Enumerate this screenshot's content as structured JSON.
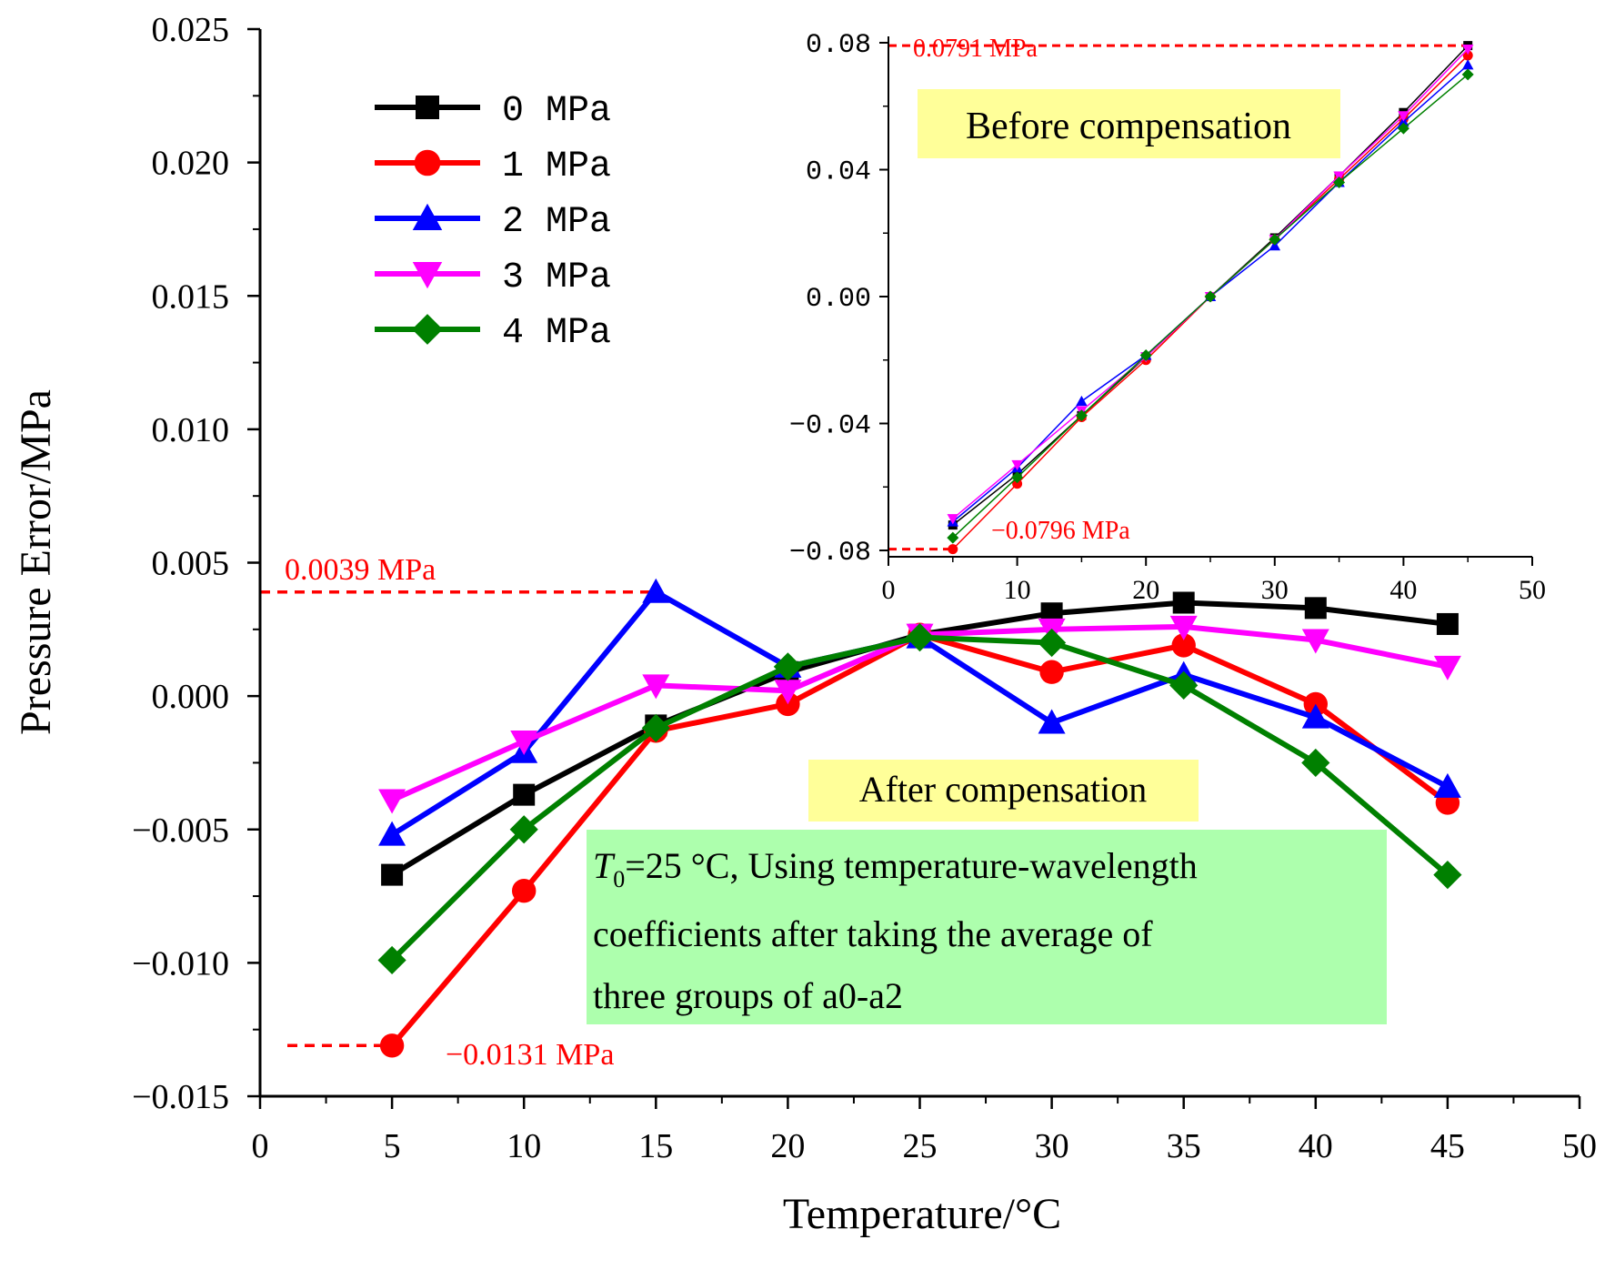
{
  "chart_data": [
    {
      "id": "main",
      "type": "line",
      "xlabel": "Temperature/°C",
      "ylabel": "Pressure Error/MPa",
      "xlim": [
        0,
        50
      ],
      "ylim": [
        -0.015,
        0.025
      ],
      "xticks": [
        0,
        5,
        10,
        15,
        20,
        25,
        30,
        35,
        40,
        45,
        50
      ],
      "xtick_labels": [
        "0",
        "5",
        "10",
        "15",
        "20",
        "25",
        "30",
        "35",
        "40",
        "45",
        "50"
      ],
      "yticks": [
        -0.015,
        -0.01,
        -0.005,
        0,
        0.005,
        0.01,
        0.015,
        0.02,
        0.025
      ],
      "ytick_labels": [
        "−0.015",
        "−0.010",
        "−0.005",
        "0.000",
        "0.005",
        "0.010",
        "0.015",
        "0.020",
        "0.025"
      ],
      "x": [
        5,
        10,
        15,
        20,
        25,
        30,
        35,
        40,
        45
      ],
      "series": [
        {
          "name": "0 MPa",
          "color": "#000000",
          "marker": "square",
          "values": [
            -0.0067,
            -0.0037,
            -0.0011,
            0.0009,
            0.0023,
            0.0031,
            0.0035,
            0.0033,
            0.0027
          ]
        },
        {
          "name": "1 MPa",
          "color": "#ff0000",
          "marker": "circle",
          "values": [
            -0.0131,
            -0.0073,
            -0.0013,
            -0.0003,
            0.0023,
            0.0009,
            0.0019,
            -0.0003,
            -0.004
          ]
        },
        {
          "name": "2 MPa",
          "color": "#0000ff",
          "marker": "triangle-up",
          "values": [
            -0.0052,
            -0.0021,
            0.0039,
            0.0011,
            0.0022,
            -0.001,
            0.0008,
            -0.0008,
            -0.0034
          ]
        },
        {
          "name": "3 MPa",
          "color": "#ff00ff",
          "marker": "triangle-down",
          "values": [
            -0.0039,
            -0.0017,
            0.0004,
            0.0002,
            0.0023,
            0.0025,
            0.0026,
            0.0021,
            0.0011
          ]
        },
        {
          "name": "4 MPa",
          "color": "#008000",
          "marker": "diamond",
          "values": [
            -0.0099,
            -0.005,
            -0.0012,
            0.0011,
            0.0022,
            0.002,
            0.0004,
            -0.0025,
            -0.0067
          ]
        }
      ],
      "reference_lines": [
        {
          "value": 0.0039,
          "label": "0.0039 MPa"
        },
        {
          "value": -0.0131,
          "label": "−0.0131 MPa"
        }
      ],
      "annotations": {
        "after": "After compensation",
        "note_t": "T",
        "note_sub": "0",
        "note_line1": "=25 °C, Using temperature-wavelength",
        "note_line2": "coefficients after taking the average of",
        "note_line3": "three groups of a0-a2"
      },
      "legend_placement": "top-left"
    },
    {
      "id": "inset",
      "type": "line",
      "xlim": [
        0,
        50
      ],
      "ylim": [
        -0.082,
        0.082
      ],
      "xticks": [
        0,
        10,
        20,
        30,
        40,
        50
      ],
      "xtick_labels": [
        "0",
        "10",
        "20",
        "30",
        "40",
        "50"
      ],
      "yticks": [
        -0.08,
        -0.04,
        0,
        0.04,
        0.08
      ],
      "ytick_labels": [
        "−0.08",
        "−0.04",
        "0.00",
        "0.04",
        "0.08"
      ],
      "x": [
        5,
        10,
        15,
        20,
        25,
        30,
        35,
        40,
        45
      ],
      "series": [
        {
          "name": "0 MPa",
          "color": "#000000",
          "marker": "square",
          "values": [
            -0.072,
            -0.056,
            -0.0375,
            -0.019,
            0,
            0.0185,
            0.038,
            0.058,
            0.0791
          ]
        },
        {
          "name": "1 MPa",
          "color": "#ff0000",
          "marker": "circle",
          "values": [
            -0.0796,
            -0.059,
            -0.038,
            -0.02,
            0,
            0.018,
            0.037,
            0.056,
            0.076
          ]
        },
        {
          "name": "2 MPa",
          "color": "#0000ff",
          "marker": "triangle-up",
          "values": [
            -0.071,
            -0.054,
            -0.033,
            -0.0185,
            0,
            0.016,
            0.036,
            0.055,
            0.073
          ]
        },
        {
          "name": "3 MPa",
          "color": "#ff00ff",
          "marker": "triangle-down",
          "values": [
            -0.07,
            -0.053,
            -0.036,
            -0.019,
            0,
            0.018,
            0.038,
            0.057,
            0.078
          ]
        },
        {
          "name": "4 MPa",
          "color": "#008000",
          "marker": "diamond",
          "values": [
            -0.076,
            -0.057,
            -0.0375,
            -0.0185,
            0,
            0.018,
            0.036,
            0.053,
            0.07
          ]
        }
      ],
      "reference_lines": [
        {
          "value": 0.0791,
          "label": "0.0791 MPa"
        },
        {
          "value": -0.0796,
          "label": "−0.0796 MPa"
        }
      ],
      "annotations": {
        "before": "Before compensation"
      }
    }
  ],
  "colors": {
    "reference": "#ff0000",
    "before_box": "#ffff99",
    "after_box": "#ffff99",
    "note_box": "#adffad"
  }
}
